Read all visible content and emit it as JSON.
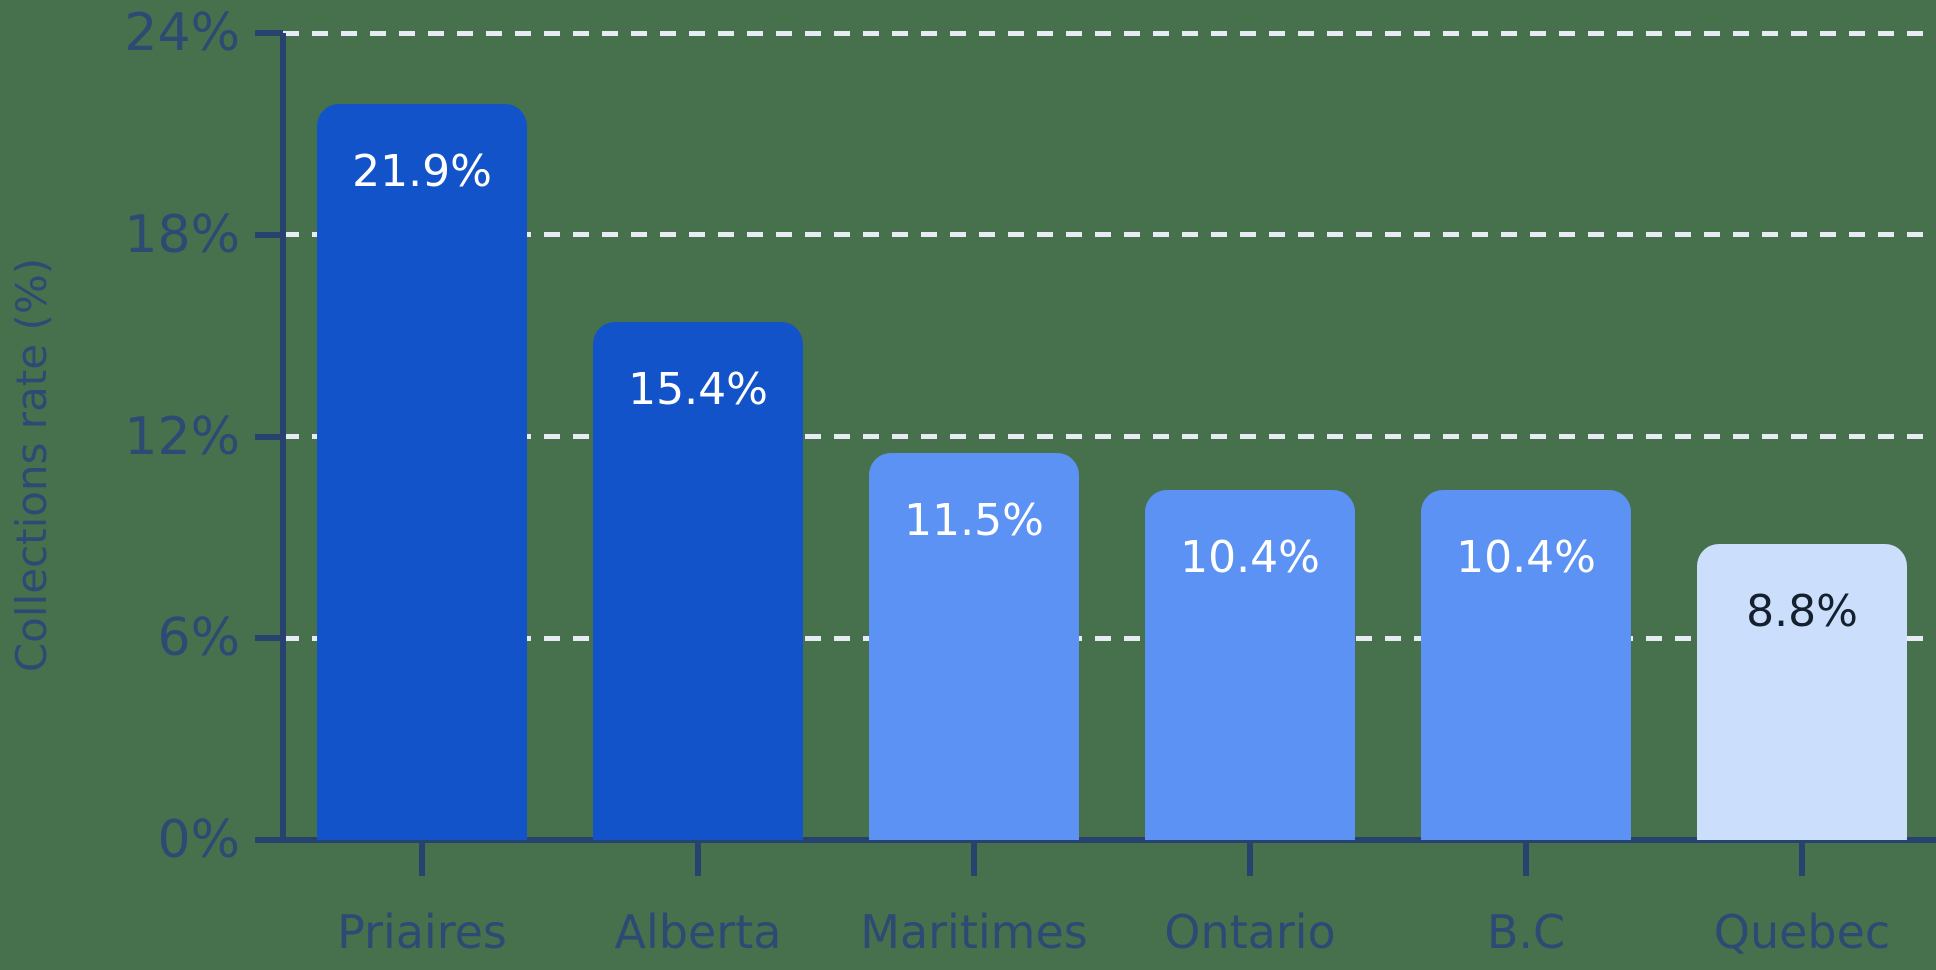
{
  "chart_data": {
    "type": "bar",
    "title": "",
    "xlabel": "",
    "ylabel": "Collections rate (%)",
    "categories": [
      "Priaires",
      "Alberta",
      "Maritimes",
      "Ontario",
      "B.C",
      "Quebec"
    ],
    "values": [
      21.9,
      15.4,
      11.5,
      10.4,
      10.4,
      8.8
    ],
    "bar_labels": [
      "21.9%",
      "15.4%",
      "11.5%",
      "10.4%",
      "10.4%",
      "8.8%"
    ],
    "ylim": [
      0,
      24
    ],
    "ytick_values": [
      0,
      6,
      12,
      18,
      24
    ],
    "ytick_labels": [
      "0%",
      "6%",
      "12%",
      "18%",
      "24%"
    ],
    "grid": "horizontal-dashed",
    "legend": "none",
    "bar_palette": {
      "dark": "#1353c9",
      "medium": "#5b92f4",
      "light": "#cbdefc"
    },
    "bar_color_by_index": [
      "dark",
      "dark",
      "medium",
      "medium",
      "medium",
      "light"
    ],
    "value_text_colors": [
      "#ffffff",
      "#ffffff",
      "#ffffff",
      "#ffffff",
      "#ffffff",
      "#15202f"
    ]
  },
  "colors": {
    "background": "#47704d",
    "axis": "#27426e",
    "tick_text": "#2e4a74",
    "gridline": "#e7ecf4"
  }
}
